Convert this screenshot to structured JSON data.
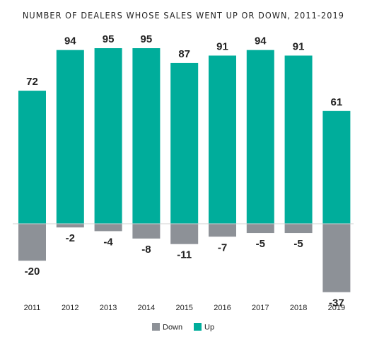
{
  "chart_data": {
    "type": "bar",
    "title": "NUMBER OF DEALERS WHOSE SALES WENT UP OR DOWN, 2011-2019",
    "categories": [
      "2011",
      "2012",
      "2013",
      "2014",
      "2015",
      "2016",
      "2017",
      "2018",
      "2019"
    ],
    "series": [
      {
        "name": "Down",
        "color": "#8d9197",
        "values": [
          -20,
          -2,
          -4,
          -8,
          -11,
          -7,
          -5,
          -5,
          -37
        ]
      },
      {
        "name": "Up",
        "color": "#00ad9b",
        "values": [
          72,
          94,
          95,
          95,
          87,
          91,
          94,
          91,
          61
        ]
      }
    ],
    "ylim": [
      -37,
      95
    ],
    "grid": false,
    "legend_position": "bottom-center",
    "xlabel": "",
    "ylabel": ""
  }
}
